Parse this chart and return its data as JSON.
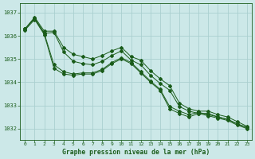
{
  "background_color": "#cce8e8",
  "grid_color": "#aacfcf",
  "line_color": "#1a5c1a",
  "xlabel": "Graphe pression niveau de la mer (hPa)",
  "ylim": [
    1031.5,
    1037.4
  ],
  "xlim": [
    -0.5,
    23.5
  ],
  "yticks": [
    1032,
    1033,
    1034,
    1035,
    1036,
    1037
  ],
  "xticks": [
    0,
    1,
    2,
    3,
    4,
    5,
    6,
    7,
    8,
    9,
    10,
    11,
    12,
    13,
    14,
    15,
    16,
    17,
    18,
    19,
    20,
    21,
    22,
    23
  ],
  "series": [
    {
      "x": [
        0,
        1,
        2,
        3,
        4,
        5,
        6,
        7,
        8,
        9,
        10,
        11,
        12,
        13,
        14,
        15,
        16,
        17,
        18,
        19,
        20,
        21,
        22,
        23
      ],
      "y": [
        1036.3,
        1036.8,
        1036.2,
        1036.2,
        1035.5,
        1035.2,
        1035.1,
        1035.0,
        1035.15,
        1035.35,
        1035.5,
        1035.1,
        1034.95,
        1034.5,
        1034.15,
        1033.85,
        1033.1,
        1032.85,
        1032.75,
        1032.75,
        1032.6,
        1032.5,
        1032.3,
        1032.1
      ]
    },
    {
      "x": [
        0,
        1,
        2,
        3,
        4,
        5,
        6,
        7,
        8,
        9,
        10,
        11,
        12,
        13,
        14,
        15,
        16,
        17,
        18,
        19,
        20,
        21,
        22,
        23
      ],
      "y": [
        1036.3,
        1036.75,
        1036.1,
        1036.15,
        1035.3,
        1034.9,
        1034.8,
        1034.75,
        1034.9,
        1035.15,
        1035.35,
        1034.95,
        1034.75,
        1034.3,
        1033.95,
        1033.65,
        1032.95,
        1032.75,
        1032.65,
        1032.65,
        1032.5,
        1032.4,
        1032.2,
        1032.05
      ]
    },
    {
      "x": [
        0,
        1,
        2,
        3,
        4,
        5,
        6,
        7,
        8,
        9,
        10,
        11,
        12,
        13,
        14,
        15,
        16,
        17,
        18,
        19,
        20,
        21,
        22,
        23
      ],
      "y": [
        1036.3,
        1036.75,
        1036.1,
        1034.75,
        1034.45,
        1034.35,
        1034.4,
        1034.4,
        1034.55,
        1034.85,
        1035.05,
        1034.85,
        1034.45,
        1034.05,
        1033.7,
        1032.95,
        1032.75,
        1032.6,
        1032.7,
        1032.6,
        1032.5,
        1032.4,
        1032.2,
        1032.05
      ]
    },
    {
      "x": [
        0,
        1,
        2,
        3,
        4,
        5,
        6,
        7,
        8,
        9,
        10,
        11,
        12,
        13,
        14,
        15,
        16,
        17,
        18,
        19,
        20,
        21,
        22,
        23
      ],
      "y": [
        1036.25,
        1036.7,
        1036.05,
        1034.6,
        1034.35,
        1034.3,
        1034.35,
        1034.35,
        1034.5,
        1034.8,
        1035.0,
        1034.8,
        1034.4,
        1034.0,
        1033.65,
        1032.85,
        1032.65,
        1032.5,
        1032.65,
        1032.55,
        1032.45,
        1032.35,
        1032.15,
        1032.0
      ]
    }
  ]
}
